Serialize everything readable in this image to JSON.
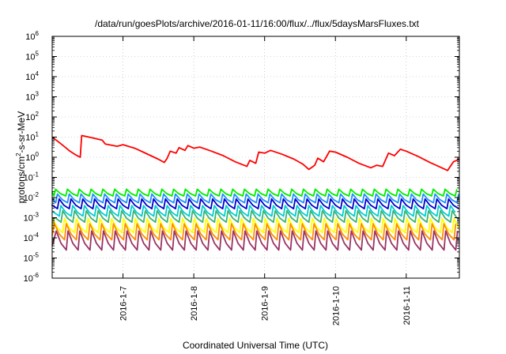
{
  "chart_data": {
    "type": "line",
    "title": "/data/run/goesPlots/archive/2016-01-11/16:00/flux/../flux/5daysMarsFluxes.txt",
    "xlabel": "Coordinated Universal Time (UTC)",
    "ylabel": "protons/cm²-s-sr-MeV",
    "ylabel_parts": {
      "before": "protons/cm",
      "sup": "2",
      "after": "-s-sr-MeV"
    },
    "yscale": "log",
    "ylim": [
      1e-06,
      1000000.0
    ],
    "y_ticks": [
      {
        "base": "10",
        "exp": "-6",
        "value": 1e-06
      },
      {
        "base": "10",
        "exp": "-5",
        "value": 1e-05
      },
      {
        "base": "10",
        "exp": "-4",
        "value": 0.0001
      },
      {
        "base": "10",
        "exp": "-3",
        "value": 0.001
      },
      {
        "base": "10",
        "exp": "-2",
        "value": 0.01
      },
      {
        "base": "10",
        "exp": "-1",
        "value": 0.1
      },
      {
        "base": "10",
        "exp": "0",
        "value": 1
      },
      {
        "base": "10",
        "exp": "1",
        "value": 10
      },
      {
        "base": "10",
        "exp": "2",
        "value": 100
      },
      {
        "base": "10",
        "exp": "3",
        "value": 1000
      },
      {
        "base": "10",
        "exp": "4",
        "value": 10000
      },
      {
        "base": "10",
        "exp": "5",
        "value": 100000
      },
      {
        "base": "10",
        "exp": "6",
        "value": 1000000
      }
    ],
    "xlim": [
      "2016-01-06T00:00",
      "2016-01-11T18:00"
    ],
    "x_ticks": [
      {
        "label": "2016-1-7",
        "value": "2016-01-07T00:00"
      },
      {
        "label": "2016-1-8",
        "value": "2016-01-08T00:00"
      },
      {
        "label": "2016-1-9",
        "value": "2016-01-09T00:00"
      },
      {
        "label": "2016-1-10",
        "value": "2016-01-10T00:00"
      },
      {
        "label": "2016-1-11",
        "value": "2016-01-11T00:00"
      }
    ],
    "grid": true,
    "legend": "none",
    "series": [
      {
        "color": "#ff0000",
        "points": [
          [
            "2016-01-06T00:00",
            10
          ],
          [
            "2016-01-06T02:00",
            6
          ],
          [
            "2016-01-06T04:00",
            3.5
          ],
          [
            "2016-01-06T06:00",
            2
          ],
          [
            "2016-01-06T08:00",
            1.3
          ],
          [
            "2016-01-06T09:30",
            1.0
          ],
          [
            "2016-01-06T10:00",
            12
          ],
          [
            "2016-01-06T14:00",
            9
          ],
          [
            "2016-01-06T17:00",
            7
          ],
          [
            "2016-01-06T18:00",
            4.5
          ],
          [
            "2016-01-06T22:00",
            3.5
          ],
          [
            "2016-01-07T00:00",
            4.2
          ],
          [
            "2016-01-07T04:00",
            2.8
          ],
          [
            "2016-01-07T08:00",
            1.5
          ],
          [
            "2016-01-07T12:00",
            0.8
          ],
          [
            "2016-01-07T14:00",
            0.55
          ],
          [
            "2016-01-07T15:00",
            0.9
          ],
          [
            "2016-01-07T16:00",
            2.0
          ],
          [
            "2016-01-07T18:00",
            1.6
          ],
          [
            "2016-01-07T19:00",
            3.0
          ],
          [
            "2016-01-07T21:00",
            2.2
          ],
          [
            "2016-01-07T22:00",
            3.8
          ],
          [
            "2016-01-08T00:00",
            2.8
          ],
          [
            "2016-01-08T02:00",
            3.2
          ],
          [
            "2016-01-08T06:00",
            2.0
          ],
          [
            "2016-01-08T10:00",
            1.2
          ],
          [
            "2016-01-08T14:00",
            0.6
          ],
          [
            "2016-01-08T18:00",
            0.35
          ],
          [
            "2016-01-08T19:00",
            0.7
          ],
          [
            "2016-01-08T21:00",
            0.5
          ],
          [
            "2016-01-08T22:00",
            1.8
          ],
          [
            "2016-01-09T00:00",
            1.6
          ],
          [
            "2016-01-09T02:00",
            2.2
          ],
          [
            "2016-01-09T06:00",
            1.4
          ],
          [
            "2016-01-09T10:00",
            0.8
          ],
          [
            "2016-01-09T13:00",
            0.45
          ],
          [
            "2016-01-09T15:00",
            0.25
          ],
          [
            "2016-01-09T17:00",
            0.4
          ],
          [
            "2016-01-09T18:00",
            0.9
          ],
          [
            "2016-01-09T20:00",
            0.6
          ],
          [
            "2016-01-09T22:00",
            2.0
          ],
          [
            "2016-01-10T00:00",
            1.8
          ],
          [
            "2016-01-10T04:00",
            1.0
          ],
          [
            "2016-01-10T08:00",
            0.5
          ],
          [
            "2016-01-10T12:00",
            0.3
          ],
          [
            "2016-01-10T14:00",
            0.4
          ],
          [
            "2016-01-10T16:00",
            0.35
          ],
          [
            "2016-01-10T18:00",
            1.6
          ],
          [
            "2016-01-10T20:00",
            1.2
          ],
          [
            "2016-01-10T22:00",
            2.5
          ],
          [
            "2016-01-11T00:00",
            2.0
          ],
          [
            "2016-01-11T04:00",
            1.1
          ],
          [
            "2016-01-11T08:00",
            0.55
          ],
          [
            "2016-01-11T12:00",
            0.3
          ],
          [
            "2016-01-11T14:00",
            0.22
          ],
          [
            "2016-01-11T16:00",
            0.6
          ],
          [
            "2016-01-11T18:00",
            0.8
          ]
        ]
      },
      {
        "color": "#00ee00",
        "sawtooth": {
          "high": 0.026,
          "low": 0.012,
          "period_hours": 4
        }
      },
      {
        "color": "#1e90ff",
        "sawtooth": {
          "high": 0.015,
          "low": 0.0055,
          "period_hours": 4
        }
      },
      {
        "color": "#0000cd",
        "sawtooth": {
          "high": 0.0085,
          "low": 0.0028,
          "period_hours": 4
        }
      },
      {
        "color": "#00ced1",
        "sawtooth": {
          "high": 0.004,
          "low": 0.0012,
          "period_hours": 4
        }
      },
      {
        "color": "#3cb371",
        "sawtooth": {
          "high": 0.0022,
          "low": 0.0006,
          "period_hours": 4
        }
      },
      {
        "color": "#ffff00",
        "sawtooth": {
          "high": 0.0009,
          "low": 0.00018,
          "period_hours": 4
        }
      },
      {
        "color": "#ff8c00",
        "sawtooth": {
          "high": 0.0005,
          "low": 8e-05,
          "period_hours": 4
        }
      },
      {
        "color": "#993366",
        "sawtooth": {
          "high": 0.00022,
          "low": 2.5e-05,
          "period_hours": 4
        }
      }
    ]
  }
}
